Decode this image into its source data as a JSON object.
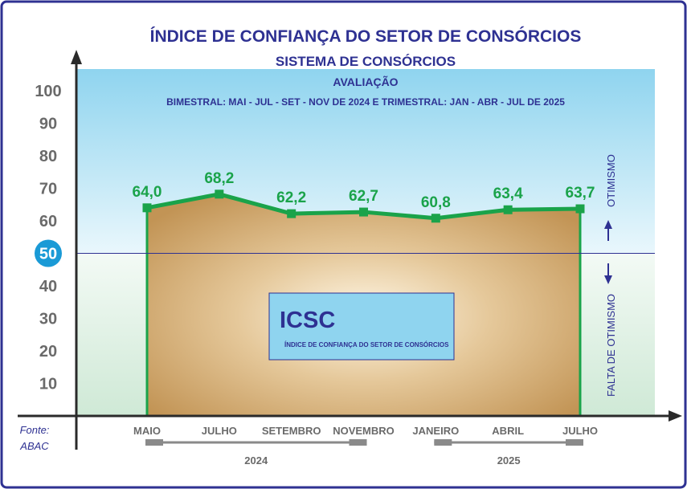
{
  "header": {
    "title": "ÍNDICE DE CONFIANÇA DO SETOR DE CONSÓRCIOS",
    "subtitle": "SISTEMA DE CONSÓRCIOS",
    "evaluation_label": "AVALIAÇÃO",
    "period_note": "BIMESTRAL: MAI - JUL - SET - NOV DE 2024 E TRIMESTRAL: JAN - ABR - JUL DE 2025"
  },
  "source": {
    "line1": "Fonte:",
    "line2": "ABAC"
  },
  "side_labels": {
    "upper": "OTIMISMO",
    "lower": "FALTA DE OTIMISMO"
  },
  "inset": {
    "acronym": "ICSC",
    "full_name": "ÍNDICE DE CONFIANÇA DO SETOR DE CONSÓRCIOS"
  },
  "colors": {
    "title": "#2e3192",
    "line": "#1aa34a",
    "area": "#c9a062",
    "sky": "#8fd4ef",
    "mint": "#e0f1e4",
    "badge": "#1a9ad6",
    "axis": "#3a3a3a",
    "tick": "#6a6a6a"
  },
  "chart_data": {
    "type": "area",
    "categories": [
      "MAIO",
      "JULHO",
      "SETEMBRO",
      "NOVEMBRO",
      "JANEIRO",
      "ABRIL",
      "JULHO"
    ],
    "values": [
      64.0,
      68.2,
      62.2,
      62.7,
      60.8,
      63.4,
      63.7
    ],
    "value_labels": [
      "64,0",
      "68,2",
      "62,2",
      "62,7",
      "60,8",
      "63,4",
      "63,7"
    ],
    "year_groups": [
      {
        "label": "2024",
        "start": 0,
        "end": 3
      },
      {
        "label": "2025",
        "start": 4,
        "end": 6
      }
    ],
    "yticks": [
      10,
      20,
      30,
      40,
      50,
      60,
      70,
      80,
      90,
      100
    ],
    "ytick_labels": [
      "10",
      "20",
      "30",
      "40",
      "50",
      "60",
      "70",
      "80",
      "90",
      "100"
    ],
    "highlight_tick": 50,
    "reference_line": 50,
    "ylim": [
      0,
      100
    ]
  }
}
